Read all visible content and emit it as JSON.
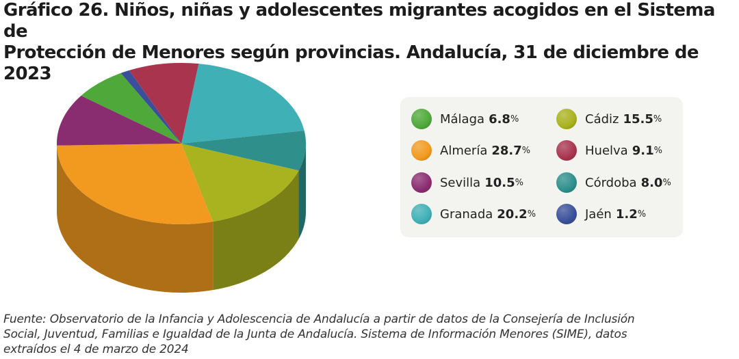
{
  "title": {
    "line1": "Gráfico 26. Niños, niñas y adolescentes migrantes acogidos en el Sistema de",
    "line2": "Protección de Menores según provincias. Andalucía, 31 de diciembre de 2023"
  },
  "chart_data": {
    "type": "pie",
    "style": "3d-cylinder",
    "unit": "%",
    "slices": [
      {
        "label": "Granada",
        "value": 20.2,
        "color": "#3fb0b6"
      },
      {
        "label": "Córdoba",
        "value": 8.0,
        "color": "#2e8f8b"
      },
      {
        "label": "Cádiz",
        "value": 15.5,
        "color": "#a9b21f"
      },
      {
        "label": "Almería",
        "value": 28.7,
        "color": "#f29a20"
      },
      {
        "label": "Sevilla",
        "value": 10.5,
        "color": "#8a2d70"
      },
      {
        "label": "Málaga",
        "value": 6.8,
        "color": "#4fa83a"
      },
      {
        "label": "Jaén",
        "value": 1.2,
        "color": "#3a4f9a"
      },
      {
        "label": "Huelva",
        "value": 9.1,
        "color": "#a8344e"
      }
    ],
    "legend_position": "right",
    "legend": [
      {
        "label": "Málaga",
        "value": "6.8",
        "unit": "%",
        "color": "#4fa83a"
      },
      {
        "label": "Cádiz",
        "value": "15.5",
        "unit": "%",
        "color": "#a9b21f"
      },
      {
        "label": "Almería",
        "value": "28.7",
        "unit": "%",
        "color": "#f29a20"
      },
      {
        "label": "Huelva",
        "value": "9.1",
        "unit": "%",
        "color": "#a8344e"
      },
      {
        "label": "Sevilla",
        "value": "10.5",
        "unit": "%",
        "color": "#8a2d70"
      },
      {
        "label": "Córdoba",
        "value": "8.0",
        "unit": "%",
        "color": "#2e8f8b"
      },
      {
        "label": "Granada",
        "value": "20.2",
        "unit": "%",
        "color": "#3fb0b6"
      },
      {
        "label": "Jaén",
        "value": "1.2",
        "unit": "%",
        "color": "#3a4f9a"
      }
    ]
  },
  "source": {
    "line1": "Fuente: Observatorio de la Infancia y Adolescencia de Andalucía a partir de datos de la Consejería de Inclusión",
    "line2": "Social, Juventud, Familias e Igualdad de la Junta de Andalucía. Sistema de Información Menores (SIME), datos",
    "line3": "extraídos el 4 de marzo de 2024"
  }
}
